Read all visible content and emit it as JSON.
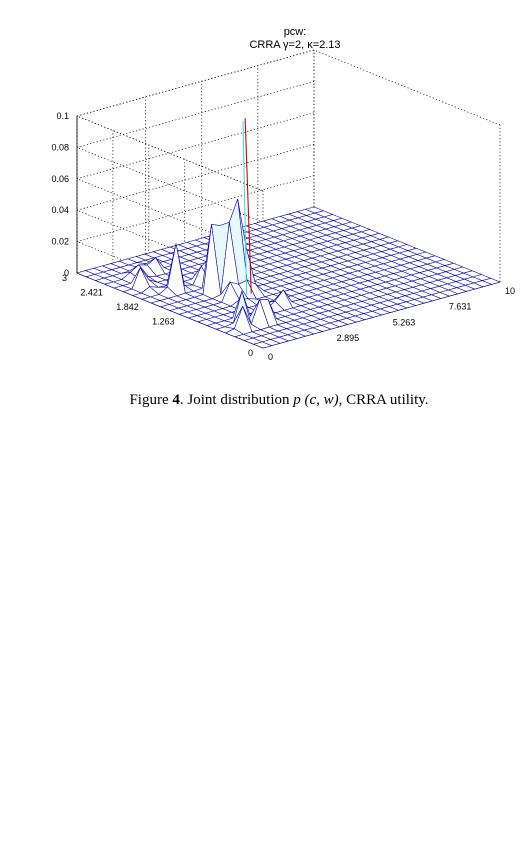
{
  "figure": {
    "title_line1": "pcw:",
    "title_line2": "CRRA γ=2, κ=2.13",
    "caption_prefix": "Figure",
    "caption_number": "4",
    "caption_after_number": ".  Joint distribution ",
    "caption_formula": "p (c, w)",
    "caption_suffix": ", CRRA utility.",
    "colors": {
      "mesh": "#0000b0",
      "surface": "#ffffff",
      "highlight_cyan": "#40e0e0",
      "highlight_red": "#d00000"
    }
  },
  "chart_data": {
    "type": "surface",
    "title": "pcw: CRRA γ=2, κ=2.13",
    "xlabel": "",
    "ylabel": "",
    "zlabel": "",
    "x_axis": {
      "range": [
        0,
        10
      ],
      "tick_labels": [
        "0",
        "2.895",
        "5.263",
        "7.631",
        "10"
      ]
    },
    "y_axis": {
      "range": [
        0,
        3
      ],
      "tick_labels": [
        "0",
        "1.263",
        "1.842",
        "2.421",
        "3"
      ]
    },
    "z_axis": {
      "range": [
        0,
        0.1
      ],
      "tick_labels": [
        "0",
        "0.02",
        "0.04",
        "0.06",
        "0.08",
        "0.1"
      ]
    },
    "grid": true,
    "peaks": [
      {
        "x": 3.0,
        "y": 1.45,
        "z": 0.114
      },
      {
        "x": 2.6,
        "y": 1.55,
        "z": 0.092
      },
      {
        "x": 2.3,
        "y": 1.65,
        "z": 0.072
      },
      {
        "x": 2.3,
        "y": 1.3,
        "z": 0.032
      },
      {
        "x": 2.7,
        "y": 1.9,
        "z": 0.04
      },
      {
        "x": 1.4,
        "y": 1.95,
        "z": 0.03
      },
      {
        "x": 0.8,
        "y": 2.2,
        "z": 0.024
      },
      {
        "x": 1.6,
        "y": 0.6,
        "z": 0.028
      },
      {
        "x": 1.1,
        "y": 0.75,
        "z": 0.02
      },
      {
        "x": 0.7,
        "y": 0.6,
        "z": 0.014
      },
      {
        "x": 2.0,
        "y": 2.6,
        "z": 0.02
      },
      {
        "x": 1.3,
        "y": 2.5,
        "z": 0.015
      },
      {
        "x": 3.1,
        "y": 0.9,
        "z": 0.012
      }
    ]
  }
}
